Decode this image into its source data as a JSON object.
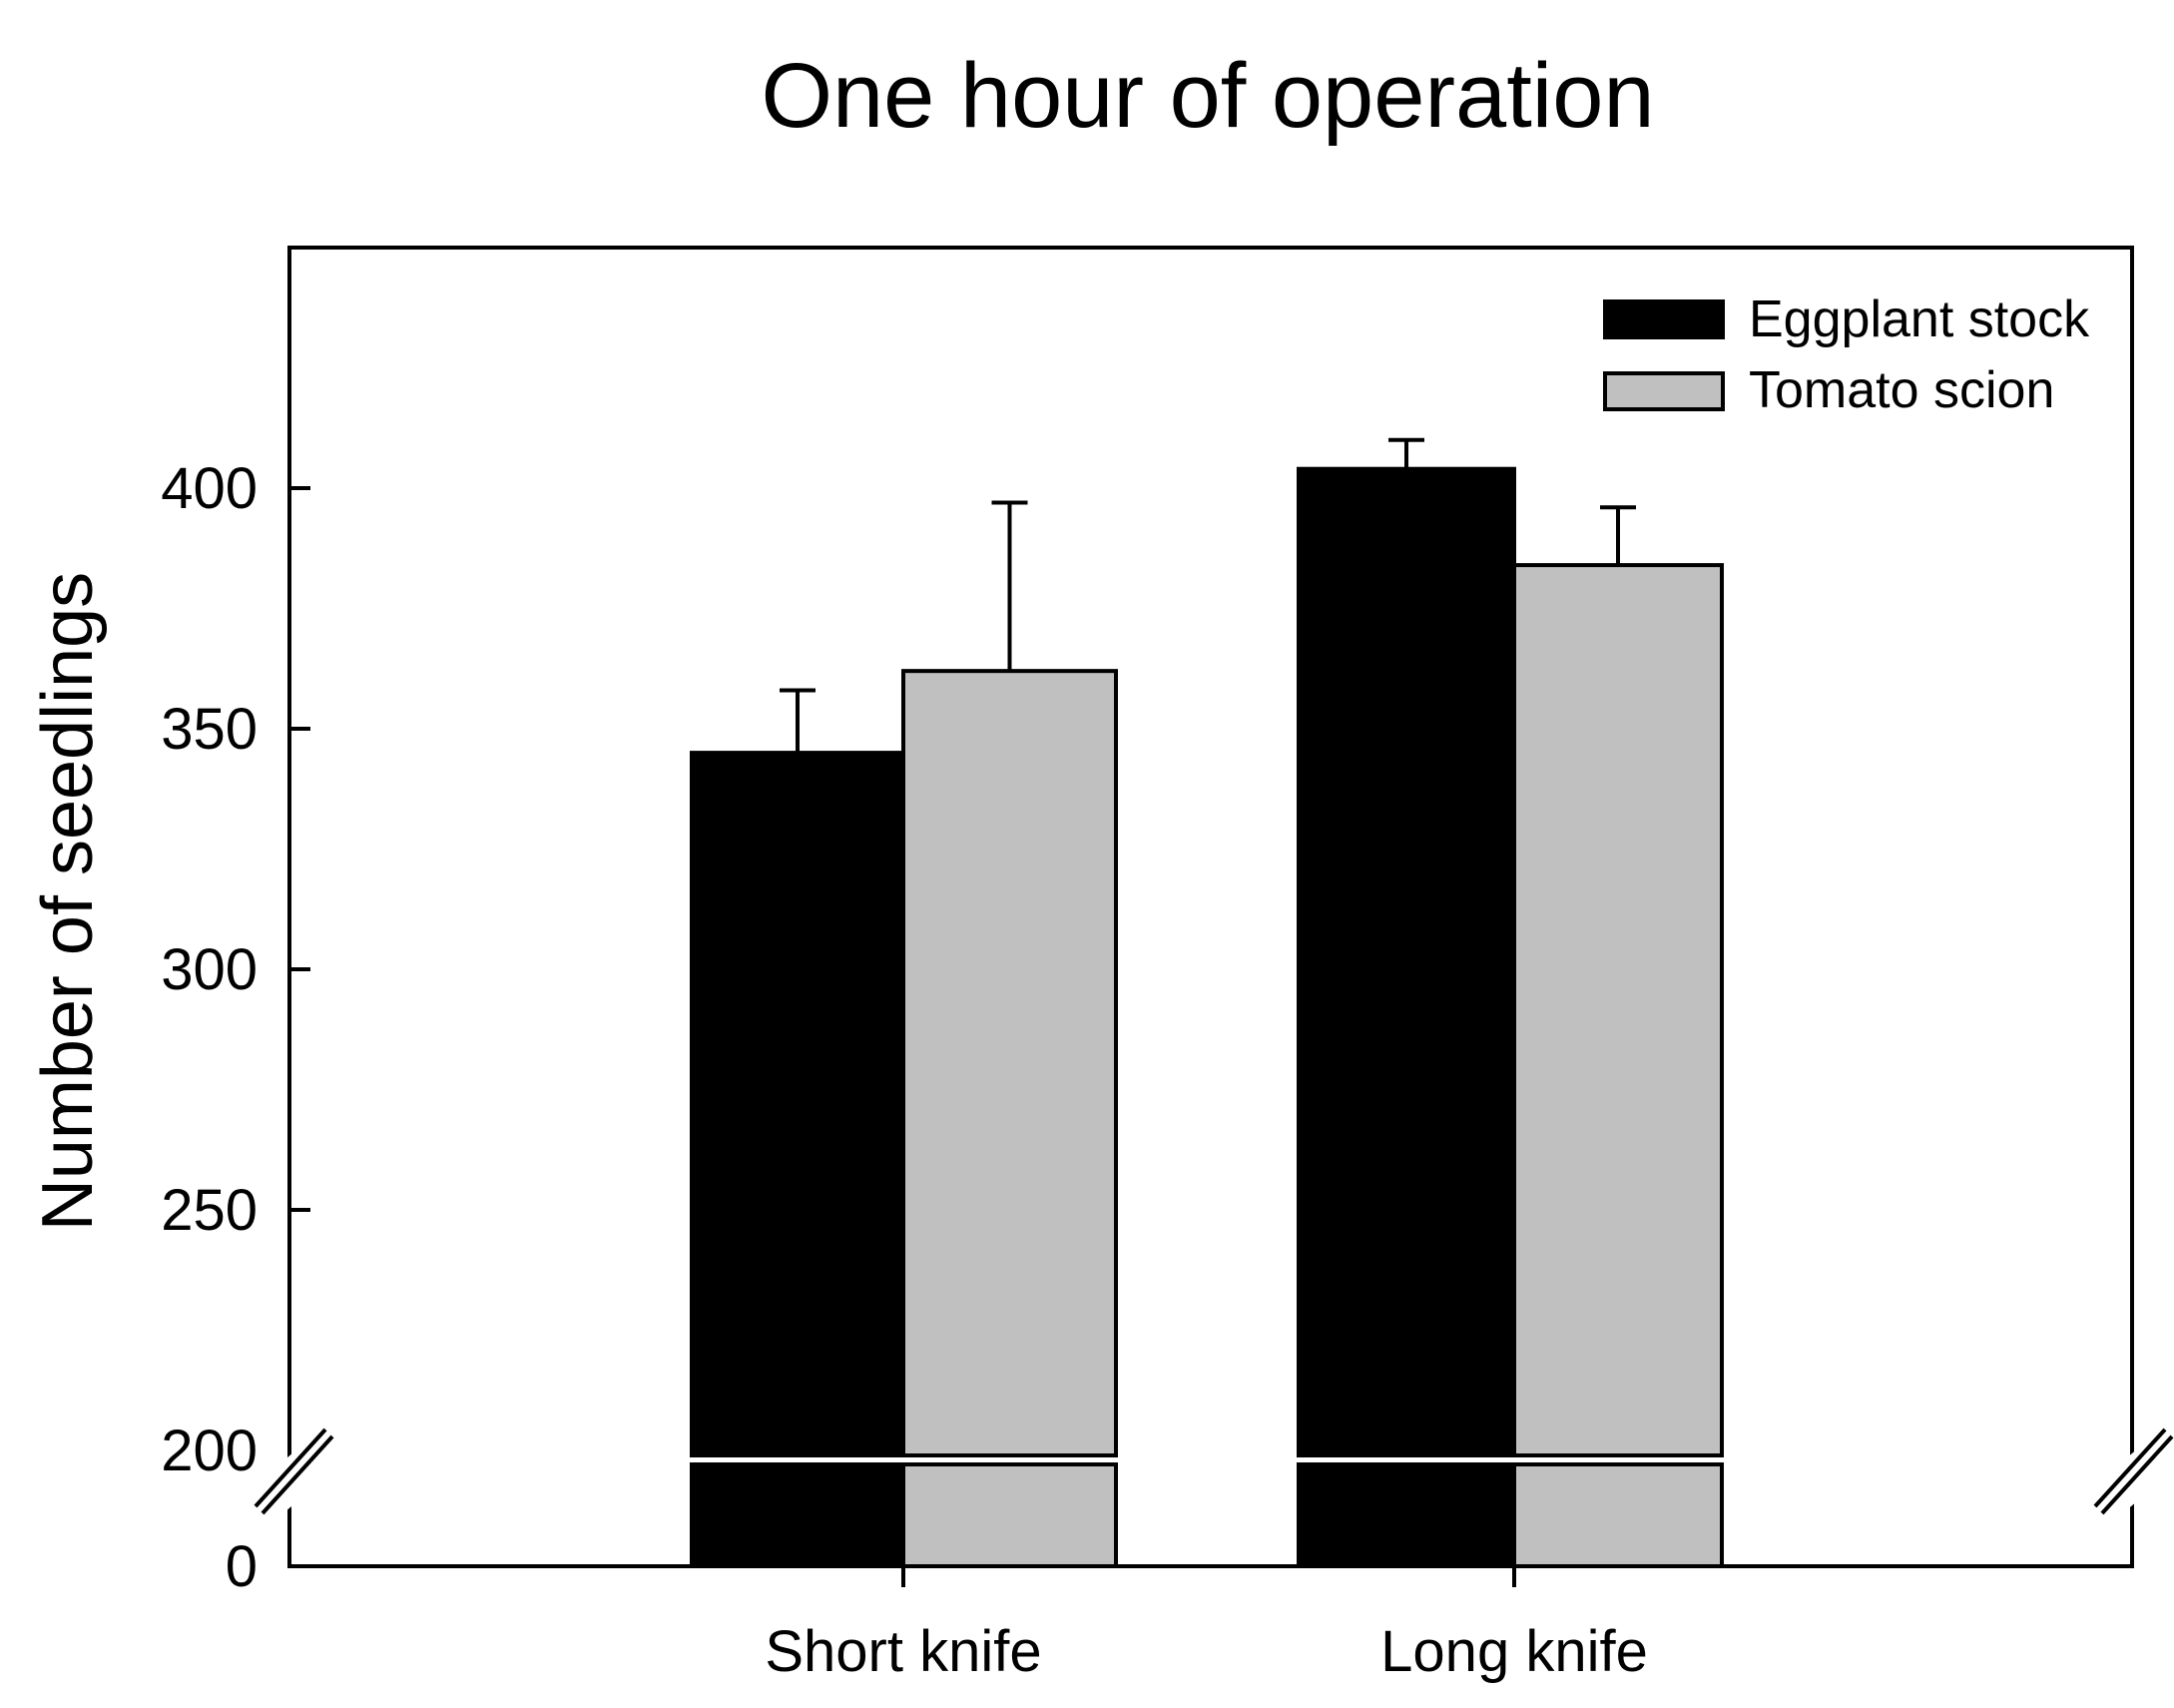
{
  "chart_data": {
    "type": "bar",
    "title": "One hour of operation",
    "xlabel": "",
    "ylabel": "Number of seedlings",
    "categories": [
      "Short knife",
      "Long knife"
    ],
    "series": [
      {
        "name": "Eggplant stock",
        "color": "#000000",
        "values": [
          345,
          404
        ],
        "errors": [
          13,
          6
        ]
      },
      {
        "name": "Tomato scion",
        "color": "#c0c0c0",
        "values": [
          362,
          384
        ],
        "errors": [
          35,
          12
        ]
      }
    ],
    "y_ticks": [
      {
        "value": 0,
        "label": "0"
      },
      {
        "value": 200,
        "label": "200"
      },
      {
        "value": 250,
        "label": "250"
      },
      {
        "value": 300,
        "label": "300"
      },
      {
        "value": 350,
        "label": "350"
      },
      {
        "value": 400,
        "label": "400"
      }
    ],
    "ylim_lower_segment": [
      0,
      20
    ],
    "ylim_upper_segment": [
      200,
      450
    ],
    "axis_break": true,
    "grid": false,
    "legend_position": "top-right"
  }
}
